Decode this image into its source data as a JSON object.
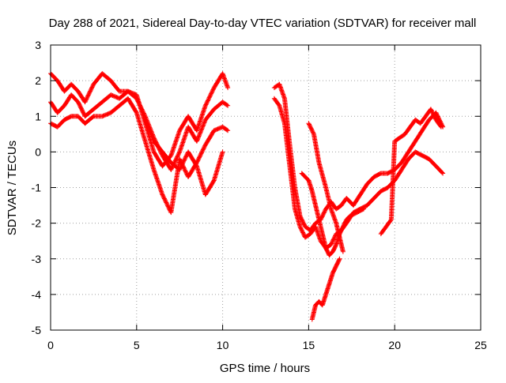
{
  "chart_data": {
    "type": "scatter",
    "title": "Day 288 of 2021, Sidereal Day-to-day VTEC variation (SDTVAR) for receiver mall",
    "xlabel": "GPS time / hours",
    "ylabel": "SDTVAR / TECUs",
    "xlim": [
      0,
      25
    ],
    "ylim": [
      -5,
      3
    ],
    "x_ticks": [
      0,
      5,
      10,
      15,
      20,
      25
    ],
    "y_ticks": [
      -5,
      -4,
      -3,
      -2,
      -1,
      0,
      1,
      2,
      3
    ],
    "grid": true,
    "grid_style": "dotted",
    "marker": "+",
    "marker_color": "#ff0000",
    "series": [
      {
        "x": [
          0,
          0.4,
          0.8,
          1.2,
          1.6,
          2.0,
          2.5,
          3.0,
          3.5,
          4.0,
          4.5,
          5.0,
          5.5,
          6.0,
          6.5,
          7.0,
          7.5,
          8.0,
          8.5,
          9.0,
          9.5,
          10.0,
          10.3
        ],
        "y": [
          2.2,
          2.0,
          1.7,
          1.9,
          1.7,
          1.4,
          1.9,
          2.2,
          2.0,
          1.7,
          1.7,
          1.6,
          0.8,
          0.0,
          -0.4,
          -0.1,
          0.6,
          1.0,
          0.6,
          1.3,
          1.8,
          2.2,
          1.8
        ]
      },
      {
        "x": [
          0,
          0.4,
          0.8,
          1.2,
          1.6,
          2.0,
          2.5,
          3.0,
          3.5,
          4.0,
          4.5,
          5.0,
          5.5,
          6.0,
          6.5,
          7.0,
          7.5,
          8.0,
          8.5,
          9.0,
          9.5,
          10.0,
          10.3
        ],
        "y": [
          1.4,
          1.1,
          1.3,
          1.6,
          1.4,
          1.0,
          1.2,
          1.4,
          1.6,
          1.5,
          1.7,
          1.5,
          1.0,
          0.4,
          -0.1,
          -0.5,
          0.0,
          0.7,
          0.3,
          0.9,
          1.2,
          1.4,
          1.3
        ]
      },
      {
        "x": [
          0,
          0.4,
          0.8,
          1.2,
          1.6,
          2.0,
          2.5,
          3.0,
          3.5,
          4.0,
          4.5,
          5.0,
          5.5,
          6.0,
          6.5,
          7.0,
          7.5,
          8.0,
          8.5,
          9.0,
          9.5,
          10.0,
          10.3
        ],
        "y": [
          0.8,
          0.7,
          0.9,
          1.0,
          1.0,
          0.8,
          1.0,
          1.0,
          1.1,
          1.3,
          1.5,
          1.1,
          0.3,
          -0.5,
          -1.2,
          -1.7,
          -0.2,
          -0.7,
          -0.3,
          0.2,
          0.6,
          0.7,
          0.6
        ]
      },
      {
        "x": [
          5.5,
          6.0,
          6.5,
          7.0,
          7.5,
          8.0,
          8.5,
          9.0,
          9.5,
          10.0
        ],
        "y": [
          0.9,
          0.3,
          0.0,
          -0.3,
          -0.5,
          0.0,
          -0.4,
          -1.2,
          -0.8,
          0.0
        ]
      },
      {
        "x": [
          13.0,
          13.3,
          13.6,
          13.9,
          14.2,
          14.5,
          14.8,
          15.1,
          15.4,
          15.7,
          16.0,
          16.3,
          16.6,
          16.9,
          17.2,
          17.6,
          18.0,
          18.4,
          18.8,
          19.2,
          19.6,
          20.0,
          20.4,
          20.8,
          21.2,
          21.6,
          22.0,
          22.4,
          22.8
        ],
        "y": [
          1.8,
          1.9,
          1.5,
          0.2,
          -1.0,
          -1.8,
          -2.1,
          -2.2,
          -2.0,
          -1.9,
          -1.6,
          -1.4,
          -1.6,
          -1.5,
          -1.3,
          -1.5,
          -1.2,
          -0.9,
          -0.7,
          -0.6,
          -0.6,
          -0.5,
          -0.3,
          0.0,
          0.3,
          0.6,
          0.9,
          1.1,
          0.7
        ]
      },
      {
        "x": [
          13.0,
          13.3,
          13.6,
          13.9,
          14.2,
          14.5,
          14.8,
          15.1,
          15.4,
          15.7,
          16.0,
          16.3,
          16.6,
          16.9,
          17.2,
          17.6,
          18.0,
          18.4,
          18.8,
          19.2,
          19.6,
          20.0,
          20.4,
          20.8,
          21.2,
          21.6,
          22.0,
          22.4,
          22.8
        ],
        "y": [
          1.5,
          1.3,
          0.8,
          -0.4,
          -1.6,
          -2.1,
          -2.4,
          -2.3,
          -2.1,
          -2.5,
          -2.7,
          -2.6,
          -2.3,
          -2.2,
          -2.0,
          -1.7,
          -1.6,
          -1.5,
          -1.3,
          -1.1,
          -1.0,
          -0.8,
          -0.5,
          -0.2,
          0.0,
          -0.1,
          -0.2,
          -0.4,
          -0.6
        ]
      },
      {
        "x": [
          15.0,
          15.3,
          15.6,
          16.0,
          16.3,
          16.6,
          16.8,
          17.0
        ],
        "y": [
          0.8,
          0.5,
          -0.3,
          -1.0,
          -1.6,
          -2.0,
          -2.4,
          -2.8
        ]
      },
      {
        "x": [
          14.6,
          14.8,
          15.0,
          15.2,
          15.4,
          15.6,
          15.8,
          16.0,
          16.2,
          16.4,
          16.6,
          16.8,
          17.0,
          17.2,
          17.4,
          17.8,
          18.2
        ],
        "y": [
          -0.6,
          -0.7,
          -0.8,
          -1.1,
          -1.5,
          -1.9,
          -2.3,
          -2.7,
          -2.9,
          -2.8,
          -2.6,
          -2.3,
          -2.1,
          -1.9,
          -1.8,
          -1.7,
          -1.6
        ]
      },
      {
        "x": [
          15.2,
          15.4,
          15.6,
          15.8,
          16.0,
          16.2,
          16.4,
          16.6,
          16.8
        ],
        "y": [
          -4.7,
          -4.3,
          -4.2,
          -4.3,
          -4.0,
          -3.7,
          -3.4,
          -3.2,
          -3.0
        ]
      },
      {
        "x": [
          19.2,
          19.5,
          19.8,
          20.0,
          20.3,
          20.6,
          20.9,
          21.2,
          21.5,
          21.8,
          22.1,
          22.4,
          22.7
        ],
        "y": [
          -2.3,
          -2.1,
          -1.9,
          0.3,
          0.4,
          0.5,
          0.7,
          0.9,
          0.8,
          1.0,
          1.2,
          0.9,
          0.7
        ]
      }
    ]
  }
}
